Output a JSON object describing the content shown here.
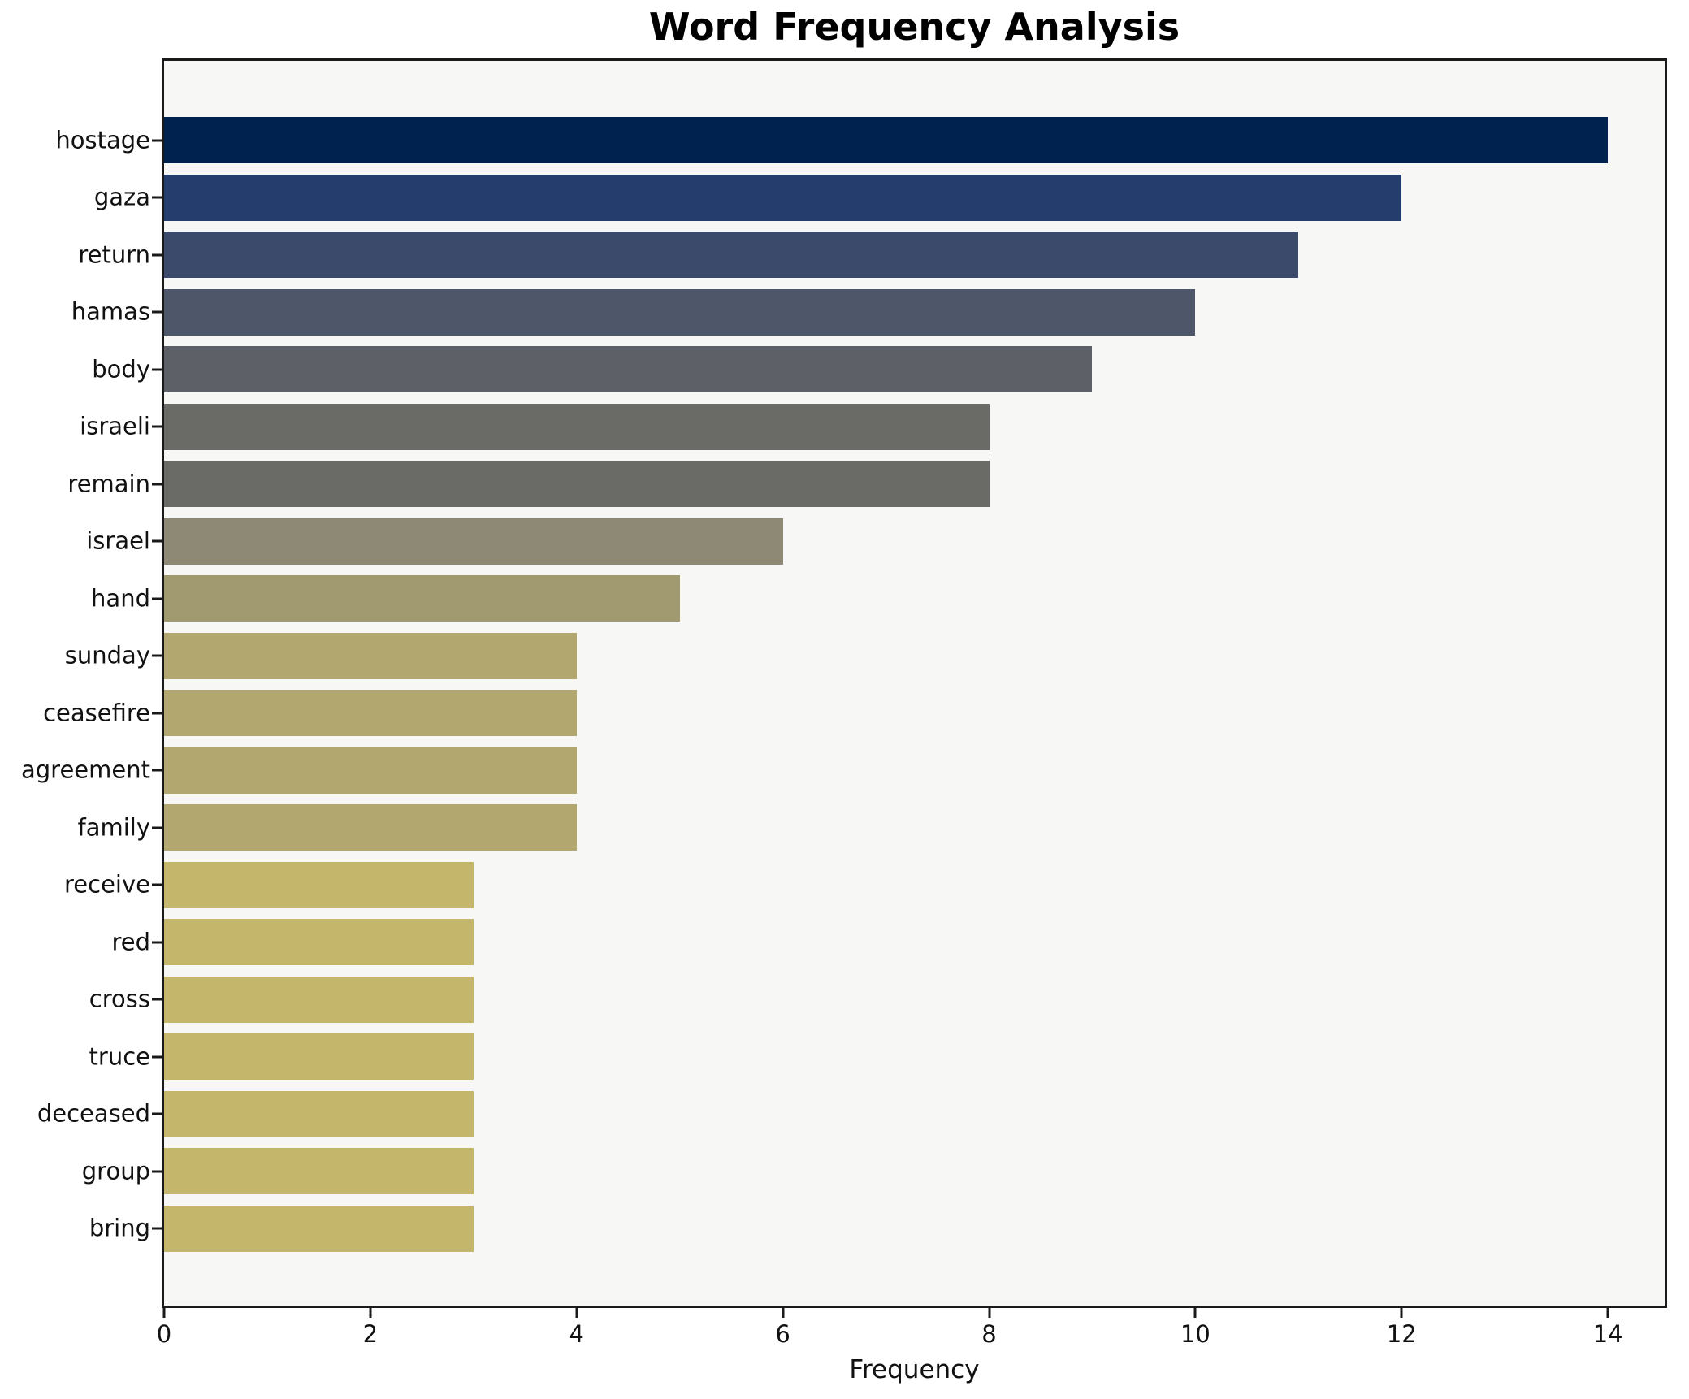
{
  "chart_data": {
    "type": "bar",
    "orientation": "horizontal",
    "title": "Word Frequency Analysis",
    "xlabel": "Frequency",
    "ylabel": "",
    "xlim": [
      0,
      14.55
    ],
    "x_ticks": [
      0,
      2,
      4,
      6,
      8,
      10,
      12,
      14
    ],
    "grid": false,
    "legend": "none",
    "plot_background": "#f7f7f6",
    "figure_background": "#ffffff",
    "categories": [
      "hostage",
      "gaza",
      "return",
      "hamas",
      "body",
      "israeli",
      "remain",
      "israel",
      "hand",
      "sunday",
      "ceasefire",
      "agreement",
      "family",
      "receive",
      "red",
      "cross",
      "truce",
      "deceased",
      "group",
      "bring"
    ],
    "values": [
      14,
      12,
      11,
      10,
      9,
      8,
      8,
      6,
      5,
      4,
      4,
      4,
      4,
      3,
      3,
      3,
      3,
      3,
      3,
      3
    ],
    "bar_colors": [
      "#00224e",
      "#253d6c",
      "#3b4a6b",
      "#4e5669",
      "#5e6067",
      "#6a6a67",
      "#6a6a67",
      "#8e8974",
      "#a19970",
      "#b2a86f",
      "#b2a86f",
      "#b2a86f",
      "#b2a86f",
      "#c4b66b",
      "#c4b66b",
      "#c4b66b",
      "#c4b66b",
      "#c4b66b",
      "#c4b66b",
      "#c4b66b"
    ]
  }
}
